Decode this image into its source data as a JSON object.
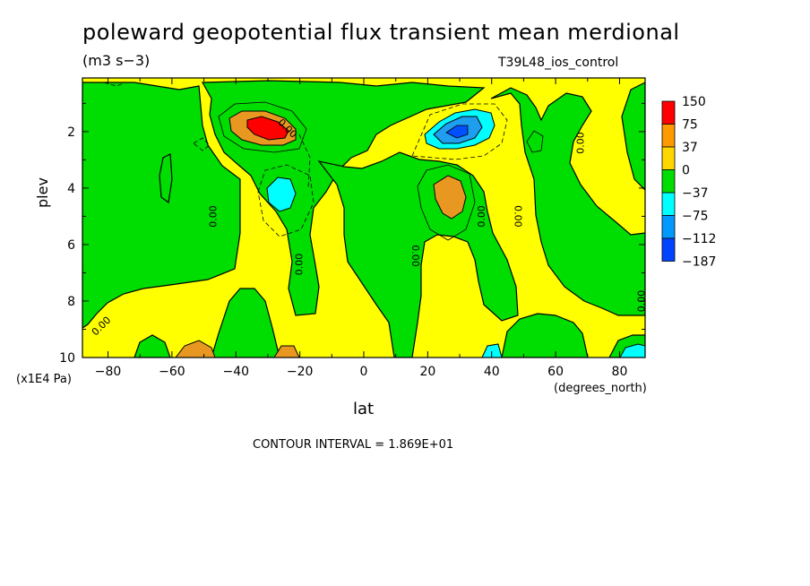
{
  "chart_data": {
    "type": "heatmap",
    "title": "poleward geopotential flux transient mean merdional",
    "units": "(m3 s−3)",
    "run_label": "T39L48_ios_control",
    "xlabel": "lat",
    "xunits": "(degrees_north)",
    "ylabel": "plev",
    "yunits": "(x1E4 Pa)",
    "contour_interval": "CONTOUR INTERVAL = 1.869E+01",
    "xlim": [
      -88,
      88
    ],
    "ylim": [
      10,
      0.1
    ],
    "x_ticks": [
      -80,
      -60,
      -40,
      -20,
      0,
      20,
      40,
      60,
      80
    ],
    "x_tick_labels": [
      "−80",
      "−60",
      "−40",
      "−20",
      "0",
      "20",
      "40",
      "60",
      "80"
    ],
    "y_ticks": [
      2,
      4,
      6,
      8,
      10
    ],
    "y_tick_labels": [
      "2",
      "4",
      "6",
      "8",
      "10"
    ],
    "contour_labels": [
      {
        "text": "0.00",
        "lat": -20,
        "plev": 6.7,
        "rotate": -90
      },
      {
        "text": "0.00",
        "lat": -47,
        "plev": 5.0,
        "rotate": -90
      },
      {
        "text": "0.00",
        "lat": 16,
        "plev": 6.4,
        "rotate": 90
      },
      {
        "text": "0.00",
        "lat": 37,
        "plev": 5.0,
        "rotate": -90
      },
      {
        "text": "0.00",
        "lat": 48,
        "plev": 5.0,
        "rotate": 90
      },
      {
        "text": "0.00",
        "lat": 68,
        "plev": 2.4,
        "rotate": -90
      },
      {
        "text": "0.00",
        "lat": 87,
        "plev": 8.0,
        "rotate": -90
      },
      {
        "text": "0.00",
        "lat": -24,
        "plev": 1.9,
        "rotate": 45
      },
      {
        "text": "0.00",
        "lat": -82,
        "plev": 8.9,
        "rotate": -45
      }
    ],
    "legend": {
      "levels": [
        "150",
        "75",
        "37",
        "0",
        "−37",
        "−75",
        "−112",
        "−187"
      ],
      "colors": [
        "#ff0000",
        "#ff9900",
        "#ffd700",
        "#00dd00",
        "#00ffff",
        "#0099ff",
        "#0044ff"
      ]
    },
    "colors": {
      "positive_high": "#ff0000",
      "positive_mid": "#e89820",
      "positive_low": "#ffff00",
      "negative_low": "#00dd00",
      "negative_mid": "#00ffff",
      "negative_high": "#1f9ef0",
      "negative_max": "#0050ff"
    }
  }
}
